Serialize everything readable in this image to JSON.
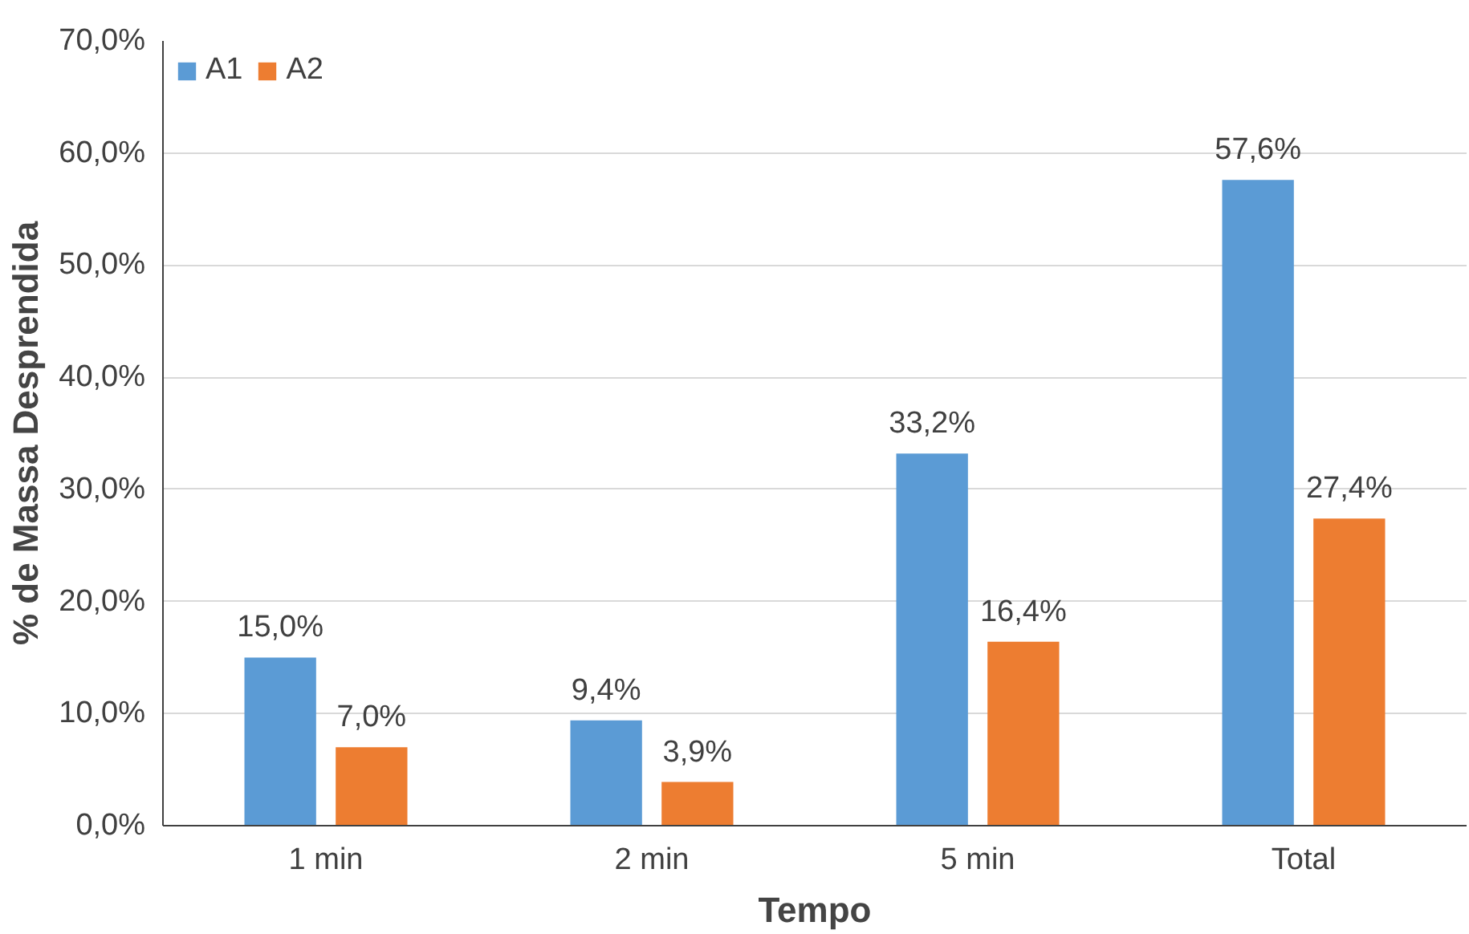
{
  "chart_data": {
    "type": "bar",
    "xlabel": "Tempo",
    "ylabel": "% de Massa Desprendida",
    "categories": [
      "1 min",
      "2 min",
      "5 min",
      "Total"
    ],
    "series": [
      {
        "name": "A1",
        "color": "#5b9bd5",
        "values": [
          15.0,
          9.4,
          33.2,
          57.6
        ],
        "value_labels": [
          "15,0%",
          "9,4%",
          "33,2%",
          "57,6%"
        ]
      },
      {
        "name": "A2",
        "color": "#ed7d31",
        "values": [
          7.0,
          3.9,
          16.4,
          27.4
        ],
        "value_labels": [
          "7,0%",
          "3,9%",
          "16,4%",
          "27,4%"
        ]
      }
    ],
    "ylim": [
      0,
      70
    ],
    "yticks": [
      {
        "value": 0,
        "label": "0,0%"
      },
      {
        "value": 10,
        "label": "10,0%"
      },
      {
        "value": 20,
        "label": "20,0%"
      },
      {
        "value": 30,
        "label": "30,0%"
      },
      {
        "value": 40,
        "label": "40,0%"
      },
      {
        "value": 50,
        "label": "50,0%"
      },
      {
        "value": 60,
        "label": "60,0%"
      },
      {
        "value": 70,
        "label": "70,0%"
      }
    ],
    "grid": "y",
    "legend": "top left"
  }
}
